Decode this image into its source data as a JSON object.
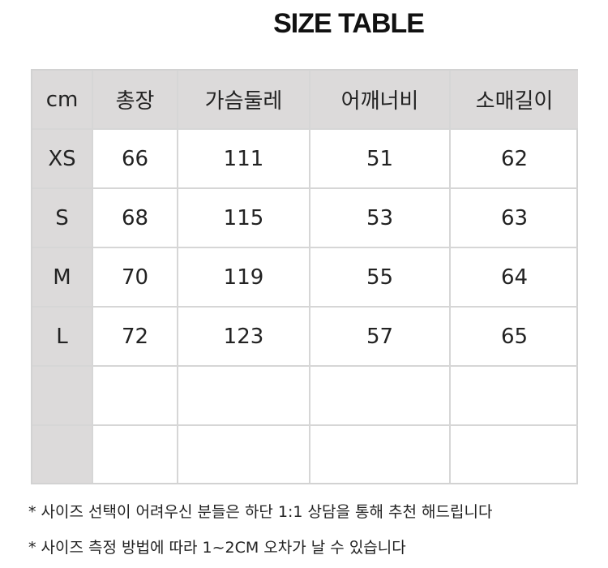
{
  "header": {
    "title": "SIZE TABLE"
  },
  "table": {
    "columns": [
      "cm",
      "총장",
      "가슴둘레",
      "어깨너비",
      "소매길이"
    ],
    "rows": [
      [
        "XS",
        66,
        111,
        51,
        62
      ],
      [
        "S",
        68,
        115,
        53,
        63
      ],
      [
        "M",
        70,
        119,
        55,
        64
      ],
      [
        "L",
        72,
        123,
        57,
        65
      ]
    ]
  },
  "notes": [
    "* 사이즈 선택이 어려우신 분들은 하단 1:1 상담을 통해 추천 해드립니다",
    "* 사이즈 측정 방법에 따라 1~2CM 오차가 날 수 있습니다"
  ]
}
